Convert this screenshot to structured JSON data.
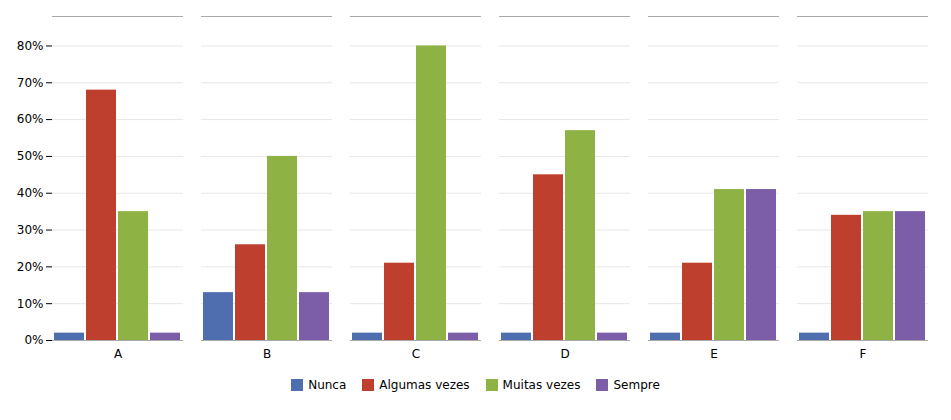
{
  "chart_data": {
    "type": "bar",
    "categories": [
      "A",
      "B",
      "C",
      "D",
      "E",
      "F"
    ],
    "series": [
      {
        "name": "Nunca",
        "color": "#4F6EAF",
        "values": [
          2,
          13,
          2,
          2,
          2,
          2
        ]
      },
      {
        "name": "Algumas vezes",
        "color": "#BE3F2E",
        "values": [
          68,
          26,
          21,
          45,
          21,
          34
        ]
      },
      {
        "name": "Muitas vezes",
        "color": "#8EB244",
        "values": [
          35,
          50,
          80,
          57,
          41,
          35
        ]
      },
      {
        "name": "Sempre",
        "color": "#7B5EA7",
        "values": [
          2,
          13,
          2,
          2,
          41,
          35
        ]
      }
    ],
    "ylim": [
      0,
      88
    ],
    "yticks": [
      {
        "value": 0,
        "label": "0%"
      },
      {
        "value": 10,
        "label": "10%"
      },
      {
        "value": 20,
        "label": "20%"
      },
      {
        "value": 30,
        "label": "30%"
      },
      {
        "value": 40,
        "label": "40%"
      },
      {
        "value": 50,
        "label": "50%"
      },
      {
        "value": 60,
        "label": "60%"
      },
      {
        "value": 70,
        "label": "70%"
      },
      {
        "value": 80,
        "label": "80%"
      }
    ],
    "grid": true,
    "legend": "bottom"
  }
}
